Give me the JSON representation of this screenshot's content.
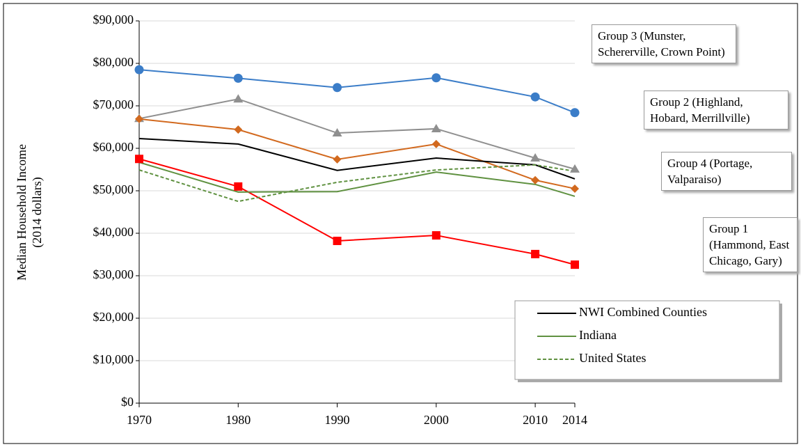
{
  "chart_data": {
    "type": "line",
    "y_label_lines": [
      "Median Household Income",
      "(2014 dollars)"
    ],
    "x": [
      1970,
      1980,
      1990,
      2000,
      2010,
      2014
    ],
    "xlim": [
      1970,
      2014
    ],
    "xticks": [
      1970,
      1980,
      1990,
      2000,
      2010,
      2014
    ],
    "ylim": [
      0,
      90000
    ],
    "yticks": [
      {
        "value": 0,
        "label": "$0"
      },
      {
        "value": 10000,
        "label": "$10,000"
      },
      {
        "value": 20000,
        "label": "$20,000"
      },
      {
        "value": 30000,
        "label": "$30,000"
      },
      {
        "value": 40000,
        "label": "$40,000"
      },
      {
        "value": 50000,
        "label": "$50,000"
      },
      {
        "value": 60000,
        "label": "$60,000"
      },
      {
        "value": 70000,
        "label": "$70,000"
      },
      {
        "value": 80000,
        "label": "$80,000"
      },
      {
        "value": 90000,
        "label": "$90,000"
      }
    ],
    "grid": true,
    "series": [
      {
        "name": "Group 3 (Munster, Schererville, Crown Point)",
        "color": "#3b7dc8",
        "marker": "circle",
        "legend": false,
        "values": [
          78500,
          76500,
          74300,
          76600,
          72100,
          68400
        ]
      },
      {
        "name": "Group 2 (Highland, Hobard, Merrillville)",
        "color": "#8f8f8f",
        "marker": "triangle",
        "legend": false,
        "values": [
          67000,
          71600,
          63600,
          64600,
          57700,
          55100
        ]
      },
      {
        "name": "Group 4 (Portage, Valparaiso)",
        "color": "#d2691e",
        "marker": "diamond",
        "legend": false,
        "values": [
          66900,
          64400,
          57400,
          61000,
          52500,
          50500
        ]
      },
      {
        "name": "Group 1 (Hammond, East Chicago, Gary)",
        "color": "#ff0000",
        "marker": "square",
        "legend": false,
        "values": [
          57500,
          51000,
          38200,
          39500,
          35100,
          32600
        ]
      },
      {
        "name": "NWI Combined Counties",
        "color": "#000000",
        "marker": "none",
        "legend": true,
        "dashed": false,
        "values": [
          62300,
          61000,
          54800,
          57700,
          56100,
          52800
        ]
      },
      {
        "name": "Indiana",
        "color": "#5f9140",
        "marker": "none",
        "legend": true,
        "dashed": false,
        "values": [
          56700,
          49700,
          49800,
          54400,
          51500,
          48700
        ]
      },
      {
        "name": "United States",
        "color": "#5f9140",
        "marker": "none",
        "legend": true,
        "dashed": true,
        "values": [
          54900,
          47500,
          52000,
          54900,
          56100,
          54600
        ]
      }
    ]
  }
}
